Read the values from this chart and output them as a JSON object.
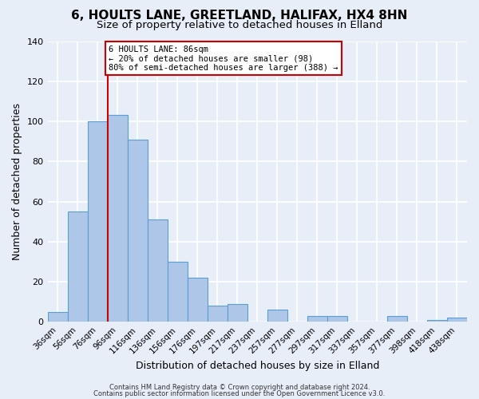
{
  "title": "6, HOULTS LANE, GREETLAND, HALIFAX, HX4 8HN",
  "subtitle": "Size of property relative to detached houses in Elland",
  "xlabel": "Distribution of detached houses by size in Elland",
  "ylabel": "Number of detached properties",
  "bar_labels": [
    "36sqm",
    "56sqm",
    "76sqm",
    "96sqm",
    "116sqm",
    "136sqm",
    "156sqm",
    "176sqm",
    "197sqm",
    "217sqm",
    "237sqm",
    "257sqm",
    "277sqm",
    "297sqm",
    "317sqm",
    "337sqm",
    "357sqm",
    "377sqm",
    "398sqm",
    "418sqm",
    "438sqm"
  ],
  "bar_values": [
    5,
    55,
    100,
    103,
    91,
    51,
    30,
    22,
    8,
    9,
    0,
    6,
    0,
    3,
    3,
    0,
    0,
    3,
    0,
    1,
    2
  ],
  "bar_color": "#aec6e8",
  "bar_edge_color": "#5a9fd4",
  "ylim": [
    0,
    140
  ],
  "yticks": [
    0,
    20,
    40,
    60,
    80,
    100,
    120,
    140
  ],
  "vline_color": "#cc0000",
  "annotation_title": "6 HOULTS LANE: 86sqm",
  "annotation_line1": "← 20% of detached houses are smaller (98)",
  "annotation_line2": "80% of semi-detached houses are larger (388) →",
  "annotation_box_color": "#cc0000",
  "footer1": "Contains HM Land Registry data © Crown copyright and database right 2024.",
  "footer2": "Contains public sector information licensed under the Open Government Licence v3.0.",
  "bg_color": "#e8eef8",
  "grid_color": "#ffffff",
  "title_fontsize": 11,
  "subtitle_fontsize": 9.5,
  "axis_label_fontsize": 9
}
